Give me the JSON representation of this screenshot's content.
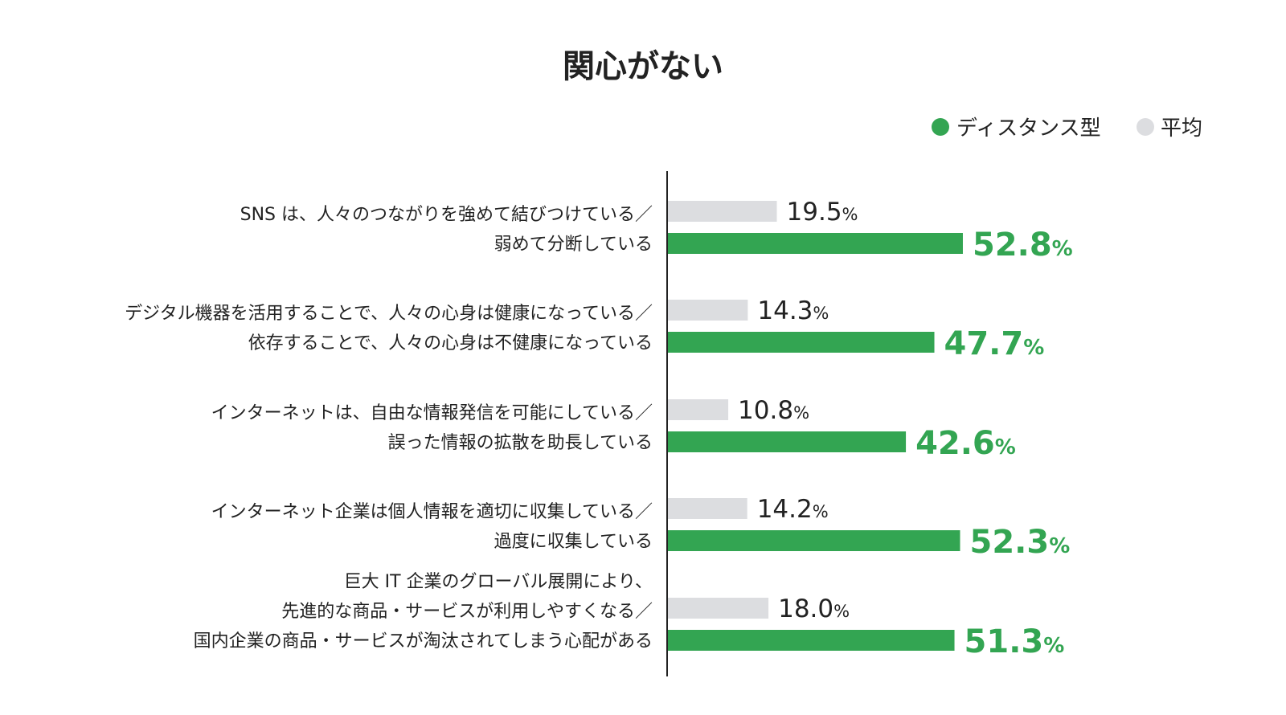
{
  "chart_data": {
    "type": "bar",
    "orientation": "horizontal",
    "title": "関心がない",
    "unit": "%",
    "xlim": [
      0,
      100
    ],
    "legend": {
      "placement": "top-right"
    },
    "series": [
      {
        "name": "平均",
        "color": "#dcdde0",
        "values": [
          19.5,
          14.3,
          10.8,
          14.2,
          18.0
        ]
      },
      {
        "name": "ディスタンス型",
        "color": "#33a552",
        "values": [
          52.8,
          47.7,
          42.6,
          52.3,
          51.3
        ]
      }
    ],
    "categories": [
      {
        "lines": [
          "SNS は、人々のつながりを強めて結びつけている／",
          "弱めて分断している"
        ]
      },
      {
        "lines": [
          "デジタル機器を活用することで、人々の心身は健康になっている／",
          "依存することで、人々の心身は不健康になっている"
        ]
      },
      {
        "lines": [
          "インターネットは、自由な情報発信を可能にしている／",
          "誤った情報の拡散を助長している"
        ]
      },
      {
        "lines": [
          "インターネット企業は個人情報を適切に収集している／",
          "過度に収集している"
        ]
      },
      {
        "lines": [
          "巨大 IT 企業のグローバル展開により、",
          "先進的な商品・サービスが利用しやすくなる／",
          "国内企業の商品・サービスが淘汰されてしまう心配がある"
        ]
      }
    ],
    "legend_order": [
      "ディスタンス型",
      "平均"
    ]
  }
}
